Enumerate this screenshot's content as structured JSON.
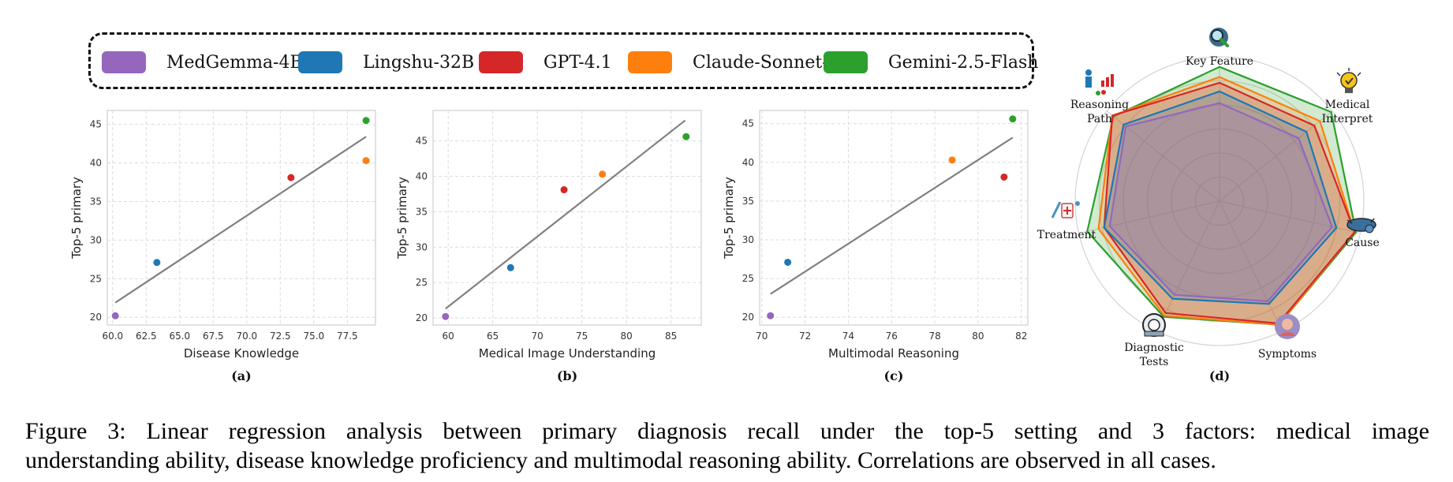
{
  "legend": [
    {
      "name": "MedGemma-4B",
      "color": "#9467bd"
    },
    {
      "name": "Lingshu-32B",
      "color": "#1f77b4"
    },
    {
      "name": "GPT-4.1",
      "color": "#d62728"
    },
    {
      "name": "Claude-Sonnet-4",
      "color": "#ff7f0e"
    },
    {
      "name": "Gemini-2.5-Flash",
      "color": "#2ca02c"
    }
  ],
  "chart_data": [
    {
      "type": "scatter",
      "panel": "(a)",
      "xlabel": "Disease Knowledge",
      "ylabel": "Top-5 primary",
      "xlim": [
        59.6,
        79.6
      ],
      "ylim": [
        19.0,
        46.8
      ],
      "xticks": [
        60.0,
        62.5,
        65.0,
        67.5,
        70.0,
        72.5,
        75.0,
        77.5
      ],
      "xtick_labels": [
        "60.0",
        "62.5",
        "65.0",
        "67.5",
        "70.0",
        "72.5",
        "75.0",
        "77.5"
      ],
      "yticks": [
        20,
        25,
        30,
        35,
        40,
        45
      ],
      "points": [
        {
          "model": "MedGemma-4B",
          "x": 60.2,
          "y": 20.2
        },
        {
          "model": "Lingshu-32B",
          "x": 63.3,
          "y": 27.1
        },
        {
          "model": "GPT-4.1",
          "x": 73.3,
          "y": 38.1
        },
        {
          "model": "Claude-Sonnet-4",
          "x": 78.9,
          "y": 40.3
        },
        {
          "model": "Gemini-2.5-Flash",
          "x": 78.9,
          "y": 45.5
        }
      ],
      "fit_line": {
        "x": [
          60.2,
          78.9
        ],
        "y": [
          21.9,
          43.4
        ]
      },
      "grid": true
    },
    {
      "type": "scatter",
      "panel": "(b)",
      "xlabel": "Medical Image Understanding",
      "ylabel": "Top-5 primary",
      "xlim": [
        58.3,
        88.4
      ],
      "ylim": [
        19.0,
        49.3
      ],
      "xticks": [
        60,
        65,
        70,
        75,
        80,
        85
      ],
      "xtick_labels": [
        "60",
        "65",
        "70",
        "75",
        "80",
        "85"
      ],
      "yticks": [
        20,
        25,
        30,
        35,
        40,
        45
      ],
      "points": [
        {
          "model": "MedGemma-4B",
          "x": 59.7,
          "y": 20.2
        },
        {
          "model": "Lingshu-32B",
          "x": 67.0,
          "y": 27.1
        },
        {
          "model": "GPT-4.1",
          "x": 73.0,
          "y": 38.1
        },
        {
          "model": "Claude-Sonnet-4",
          "x": 77.3,
          "y": 40.3
        },
        {
          "model": "Gemini-2.5-Flash",
          "x": 86.7,
          "y": 45.6
        }
      ],
      "fit_line": {
        "x": [
          59.7,
          86.6
        ],
        "y": [
          21.3,
          47.9
        ]
      },
      "grid": true
    },
    {
      "type": "scatter",
      "panel": "(c)",
      "xlabel": "Multimodal Reasoning",
      "ylabel": "Top-5 primary",
      "xlim": [
        69.9,
        82.3
      ],
      "ylim": [
        19.0,
        46.7
      ],
      "xticks": [
        70,
        72,
        74,
        76,
        78,
        80,
        82
      ],
      "xtick_labels": [
        "70",
        "72",
        "74",
        "76",
        "78",
        "80",
        "82"
      ],
      "yticks": [
        20,
        25,
        30,
        35,
        40,
        45
      ],
      "points": [
        {
          "model": "MedGemma-4B",
          "x": 70.4,
          "y": 20.2
        },
        {
          "model": "Lingshu-32B",
          "x": 71.2,
          "y": 27.1
        },
        {
          "model": "Claude-Sonnet-4",
          "x": 78.8,
          "y": 40.3
        },
        {
          "model": "GPT-4.1",
          "x": 81.2,
          "y": 38.1
        },
        {
          "model": "Gemini-2.5-Flash",
          "x": 81.6,
          "y": 45.6
        }
      ],
      "fit_line": {
        "x": [
          70.4,
          81.6
        ],
        "y": [
          23.0,
          43.2
        ]
      },
      "grid": true
    },
    {
      "type": "radar",
      "panel": "(d)",
      "axes": [
        "Key Feature",
        "Medical Interpret",
        "Cause",
        "Symptoms",
        "Diagnostic Tests",
        "Treatment",
        "Reasoning Path"
      ],
      "axis_icons": [
        "magnifier-icon",
        "lightbulb-icon",
        "virus-icon",
        "person-icon",
        "scanner-icon",
        "medicine-icon",
        "reasoning-chart-icon"
      ],
      "range": [
        0,
        1
      ],
      "rings": 6,
      "series": [
        {
          "name": "MedGemma-4B",
          "color": "#9467bd",
          "values": [
            0.68,
            0.7,
            0.8,
            0.77,
            0.72,
            0.78,
            0.83
          ]
        },
        {
          "name": "Lingshu-32B",
          "color": "#1f77b4",
          "values": [
            0.76,
            0.77,
            0.83,
            0.79,
            0.75,
            0.82,
            0.85
          ]
        },
        {
          "name": "GPT-4.1",
          "color": "#d62728",
          "values": [
            0.82,
            0.84,
            0.96,
            0.94,
            0.86,
            0.82,
            0.95
          ]
        },
        {
          "name": "Claude-Sonnet-4",
          "color": "#ff7f0e",
          "values": [
            0.86,
            0.89,
            0.96,
            0.95,
            0.88,
            0.86,
            0.95
          ]
        },
        {
          "name": "Gemini-2.5-Flash",
          "color": "#2ca02c",
          "values": [
            0.93,
            0.99,
            0.97,
            0.95,
            0.89,
            0.94,
            0.94
          ]
        }
      ]
    }
  ],
  "panel_labels": [
    "(a)",
    "(b)",
    "(c)",
    "(d)"
  ],
  "radar_labels": {
    "key_feature": "Key Feature",
    "medical_interpret": [
      "Medical",
      "Interpret"
    ],
    "cause": "Cause",
    "symptoms": "Symptoms",
    "diagnostic_tests": [
      "Diagnostic",
      "Tests"
    ],
    "treatment": "Treatment",
    "reasoning_path": [
      "Reasoning",
      "Path"
    ]
  },
  "caption": {
    "line1": "Figure 3: Linear regression analysis between primary diagnosis recall under the top-5 setting and 3 factors: medical image",
    "line2": "understanding ability, disease knowledge proficiency and multimodal reasoning ability. Correlations are observed in all cases."
  }
}
